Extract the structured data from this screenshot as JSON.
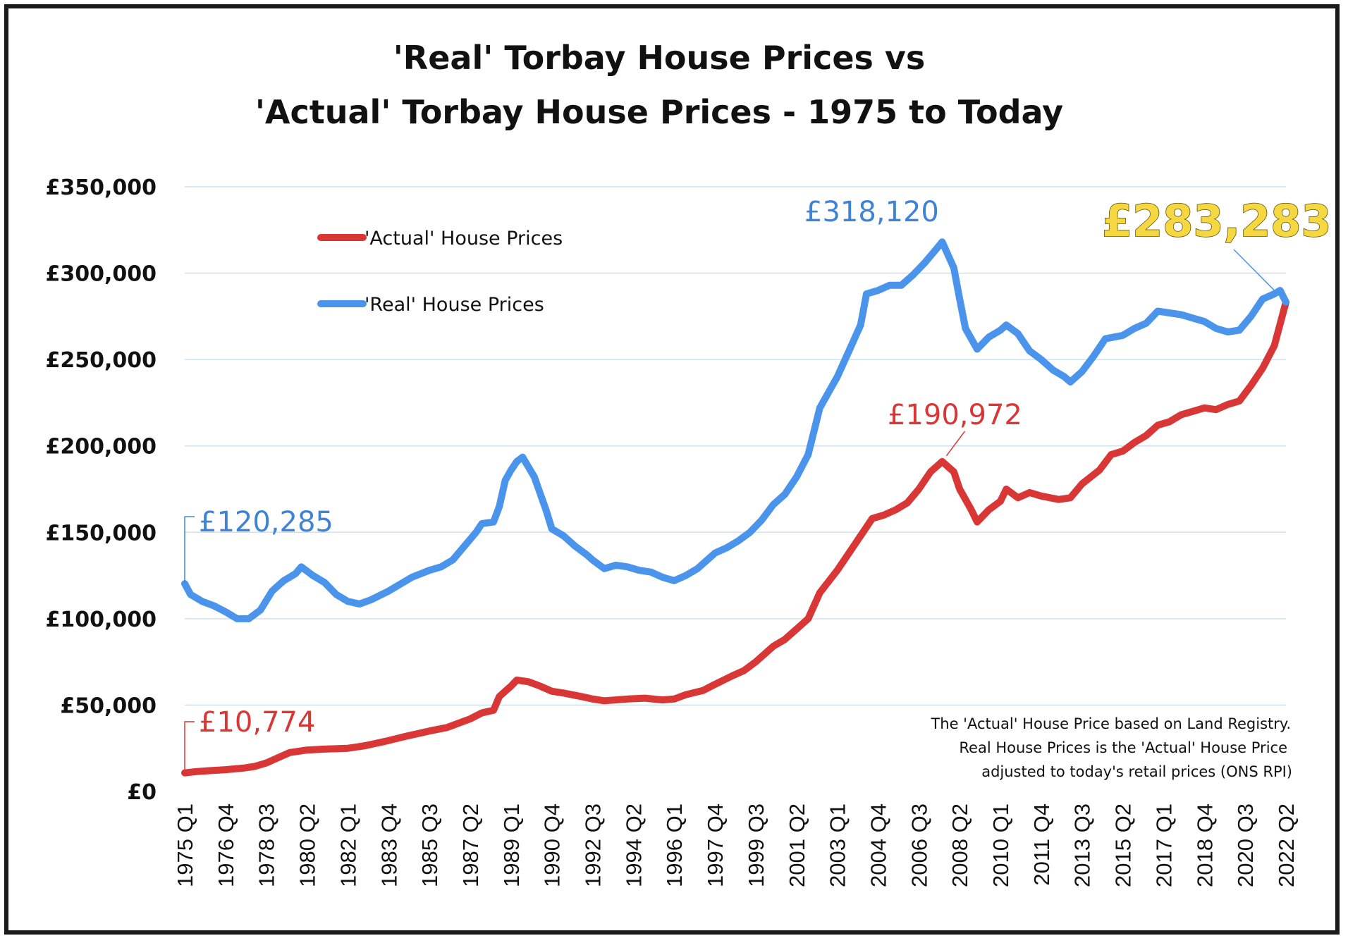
{
  "chart_data": {
    "type": "line",
    "title_line1": "'Real' Torbay House Prices vs",
    "title_line2": "'Actual' Torbay House Prices - 1975 to Today",
    "y_ticks": [
      "£0",
      "£50,000",
      "£100,000",
      "£150,000",
      "£200,000",
      "£250,000",
      "£300,000",
      "£350,000"
    ],
    "ylim": [
      0,
      350000
    ],
    "grid": "horizontal",
    "x_tick_labels": [
      "1975 Q1",
      "1976 Q4",
      "1978 Q3",
      "1980 Q2",
      "1982 Q1",
      "1983 Q4",
      "1985 Q3",
      "1987 Q2",
      "1989 Q1",
      "1990 Q4",
      "1992 Q3",
      "1994 Q2",
      "1996 Q1",
      "1997 Q4",
      "1999 Q3",
      "2001 Q2",
      "2003 Q1",
      "2004 Q4",
      "2006 Q3",
      "2008 Q2",
      "2010 Q1",
      "2011 Q4",
      "2013 Q3",
      "2015 Q2",
      "2017 Q1",
      "2018 Q4",
      "2020 Q3",
      "2022 Q2"
    ],
    "x_start": "1975 Q1",
    "x_end": "2022 Q2",
    "legend": {
      "placement": "top-left",
      "entries": [
        "'Actual' House Prices",
        "'Real' House Prices"
      ]
    },
    "series": [
      {
        "name": "'Actual' House Prices",
        "color": "#d93636",
        "points": [
          [
            "1975 Q1",
            10774
          ],
          [
            "1975 Q3",
            11500
          ],
          [
            "1976 Q1",
            12000
          ],
          [
            "1976 Q4",
            12600
          ],
          [
            "1977 Q3",
            13500
          ],
          [
            "1978 Q1",
            14500
          ],
          [
            "1978 Q3",
            16500
          ],
          [
            "1979 Q1",
            19500
          ],
          [
            "1979 Q3",
            22500
          ],
          [
            "1980 Q2",
            24000
          ],
          [
            "1981 Q1",
            24500
          ],
          [
            "1982 Q1",
            25000
          ],
          [
            "1982 Q4",
            26500
          ],
          [
            "1983 Q4",
            29500
          ],
          [
            "1984 Q3",
            32000
          ],
          [
            "1985 Q3",
            35000
          ],
          [
            "1986 Q2",
            37000
          ],
          [
            "1987 Q2",
            42000
          ],
          [
            "1987 Q4",
            45500
          ],
          [
            "1988 Q2",
            47000
          ],
          [
            "1988 Q3",
            55000
          ],
          [
            "1989 Q1",
            61000
          ],
          [
            "1989 Q2",
            64500
          ],
          [
            "1989 Q4",
            63500
          ],
          [
            "1990 Q2",
            61000
          ],
          [
            "1990 Q4",
            58000
          ],
          [
            "1991 Q2",
            57000
          ],
          [
            "1992 Q1",
            55000
          ],
          [
            "1992 Q3",
            53500
          ],
          [
            "1993 Q1",
            52500
          ],
          [
            "1994 Q1",
            53500
          ],
          [
            "1994 Q4",
            54000
          ],
          [
            "1995 Q3",
            53000
          ],
          [
            "1996 Q1",
            53500
          ],
          [
            "1996 Q3",
            56000
          ],
          [
            "1997 Q2",
            58500
          ],
          [
            "1997 Q4",
            62000
          ],
          [
            "1998 Q3",
            67000
          ],
          [
            "1999 Q1",
            70000
          ],
          [
            "1999 Q3",
            75000
          ],
          [
            "2000 Q2",
            84000
          ],
          [
            "2000 Q4",
            88000
          ],
          [
            "2001 Q2",
            94000
          ],
          [
            "2001 Q4",
            100000
          ],
          [
            "2002 Q2",
            115000
          ],
          [
            "2003 Q1",
            128000
          ],
          [
            "2003 Q3",
            138000
          ],
          [
            "2004 Q1",
            148000
          ],
          [
            "2004 Q3",
            158000
          ],
          [
            "2005 Q1",
            160000
          ],
          [
            "2005 Q3",
            163000
          ],
          [
            "2006 Q1",
            167000
          ],
          [
            "2006 Q3",
            175000
          ],
          [
            "2007 Q1",
            185000
          ],
          [
            "2007 Q3",
            190972
          ],
          [
            "2008 Q1",
            185000
          ],
          [
            "2008 Q2",
            175000
          ],
          [
            "2008 Q4",
            163000
          ],
          [
            "2009 Q1",
            156000
          ],
          [
            "2009 Q3",
            163000
          ],
          [
            "2010 Q1",
            168000
          ],
          [
            "2010 Q2",
            175000
          ],
          [
            "2010 Q4",
            170000
          ],
          [
            "2011 Q2",
            173000
          ],
          [
            "2011 Q4",
            171000
          ],
          [
            "2012 Q3",
            169000
          ],
          [
            "2013 Q1",
            170000
          ],
          [
            "2013 Q3",
            178000
          ],
          [
            "2014 Q2",
            186000
          ],
          [
            "2014 Q4",
            195000
          ],
          [
            "2015 Q2",
            197000
          ],
          [
            "2015 Q4",
            202000
          ],
          [
            "2016 Q2",
            206000
          ],
          [
            "2016 Q4",
            212000
          ],
          [
            "2017 Q2",
            214000
          ],
          [
            "2017 Q4",
            218000
          ],
          [
            "2018 Q2",
            220000
          ],
          [
            "2018 Q4",
            222000
          ],
          [
            "2019 Q2",
            221000
          ],
          [
            "2019 Q4",
            224000
          ],
          [
            "2020 Q2",
            226000
          ],
          [
            "2020 Q4",
            235000
          ],
          [
            "2021 Q2",
            245000
          ],
          [
            "2021 Q4",
            258000
          ],
          [
            "2022 Q2",
            283283
          ]
        ]
      },
      {
        "name": "'Real' House Prices",
        "color": "#4a94ec",
        "points": [
          [
            "1975 Q1",
            120285
          ],
          [
            "1975 Q2",
            114000
          ],
          [
            "1975 Q4",
            110000
          ],
          [
            "1976 Q2",
            107500
          ],
          [
            "1976 Q4",
            104000
          ],
          [
            "1977 Q2",
            100000
          ],
          [
            "1977 Q4",
            100000
          ],
          [
            "1978 Q2",
            105000
          ],
          [
            "1978 Q4",
            116000
          ],
          [
            "1979 Q2",
            122000
          ],
          [
            "1979 Q4",
            126000
          ],
          [
            "1980 Q1",
            130000
          ],
          [
            "1980 Q3",
            125000
          ],
          [
            "1981 Q1",
            121000
          ],
          [
            "1981 Q3",
            114000
          ],
          [
            "1982 Q1",
            110000
          ],
          [
            "1982 Q3",
            108500
          ],
          [
            "1983 Q1",
            111000
          ],
          [
            "1983 Q4",
            116000
          ],
          [
            "1984 Q2",
            120000
          ],
          [
            "1984 Q4",
            124000
          ],
          [
            "1985 Q3",
            128000
          ],
          [
            "1986 Q1",
            130000
          ],
          [
            "1986 Q3",
            134000
          ],
          [
            "1987 Q1",
            142000
          ],
          [
            "1987 Q3",
            150000
          ],
          [
            "1987 Q4",
            155000
          ],
          [
            "1988 Q2",
            156000
          ],
          [
            "1988 Q3",
            165000
          ],
          [
            "1988 Q4",
            180000
          ],
          [
            "1989 Q1",
            186000
          ],
          [
            "1989 Q2",
            191000
          ],
          [
            "1989 Q3",
            193500
          ],
          [
            "1990 Q1",
            182000
          ],
          [
            "1990 Q3",
            163000
          ],
          [
            "1990 Q4",
            152000
          ],
          [
            "1991 Q2",
            148000
          ],
          [
            "1991 Q4",
            142000
          ],
          [
            "1992 Q2",
            137000
          ],
          [
            "1992 Q3",
            134000
          ],
          [
            "1993 Q1",
            129000
          ],
          [
            "1993 Q3",
            131000
          ],
          [
            "1994 Q1",
            130000
          ],
          [
            "1994 Q3",
            128000
          ],
          [
            "1995 Q1",
            127000
          ],
          [
            "1995 Q3",
            124000
          ],
          [
            "1996 Q1",
            122000
          ],
          [
            "1996 Q3",
            125000
          ],
          [
            "1997 Q1",
            129000
          ],
          [
            "1997 Q3",
            135000
          ],
          [
            "1997 Q4",
            138000
          ],
          [
            "1998 Q2",
            141000
          ],
          [
            "1998 Q4",
            145000
          ],
          [
            "1999 Q2",
            150000
          ],
          [
            "1999 Q4",
            157000
          ],
          [
            "2000 Q2",
            166000
          ],
          [
            "2000 Q4",
            172000
          ],
          [
            "2001 Q2",
            182000
          ],
          [
            "2001 Q4",
            195000
          ],
          [
            "2002 Q2",
            222000
          ],
          [
            "2003 Q1",
            240000
          ],
          [
            "2003 Q3",
            255000
          ],
          [
            "2004 Q1",
            270000
          ],
          [
            "2004 Q2",
            288000
          ],
          [
            "2004 Q4",
            290000
          ],
          [
            "2005 Q2",
            293000
          ],
          [
            "2005 Q4",
            293000
          ],
          [
            "2006 Q2",
            299000
          ],
          [
            "2006 Q4",
            306000
          ],
          [
            "2007 Q2",
            314000
          ],
          [
            "2007 Q3",
            318120
          ],
          [
            "2008 Q1",
            303000
          ],
          [
            "2008 Q2",
            285000
          ],
          [
            "2008 Q3",
            268000
          ],
          [
            "2009 Q1",
            256000
          ],
          [
            "2009 Q3",
            263000
          ],
          [
            "2010 Q1",
            267000
          ],
          [
            "2010 Q2",
            270000
          ],
          [
            "2010 Q4",
            265000
          ],
          [
            "2011 Q2",
            255000
          ],
          [
            "2011 Q4",
            250000
          ],
          [
            "2012 Q2",
            244000
          ],
          [
            "2012 Q4",
            240000
          ],
          [
            "2013 Q1",
            237000
          ],
          [
            "2013 Q3",
            243000
          ],
          [
            "2014 Q1",
            252000
          ],
          [
            "2014 Q3",
            262000
          ],
          [
            "2015 Q2",
            264000
          ],
          [
            "2015 Q4",
            268000
          ],
          [
            "2016 Q2",
            271000
          ],
          [
            "2016 Q4",
            278000
          ],
          [
            "2017 Q2",
            277000
          ],
          [
            "2017 Q4",
            276000
          ],
          [
            "2018 Q2",
            274000
          ],
          [
            "2018 Q4",
            272000
          ],
          [
            "2019 Q2",
            268000
          ],
          [
            "2019 Q4",
            266000
          ],
          [
            "2020 Q2",
            267000
          ],
          [
            "2020 Q4",
            275000
          ],
          [
            "2021 Q2",
            285000
          ],
          [
            "2021 Q4",
            288000
          ],
          [
            "2022 Q1",
            290000
          ],
          [
            "2022 Q2",
            283283
          ]
        ]
      }
    ],
    "annotations": {
      "real_start": "£120,285",
      "actual_start": "£10,774",
      "real_peak": "£318,120",
      "actual_peak": "£190,972",
      "latest": "£283,283"
    },
    "note_lines": [
      "The 'Actual' House Price based on Land Registry.",
      "Real House Prices is the 'Actual' House Price",
      "adjusted to today's retail prices (ONS RPI)"
    ]
  }
}
